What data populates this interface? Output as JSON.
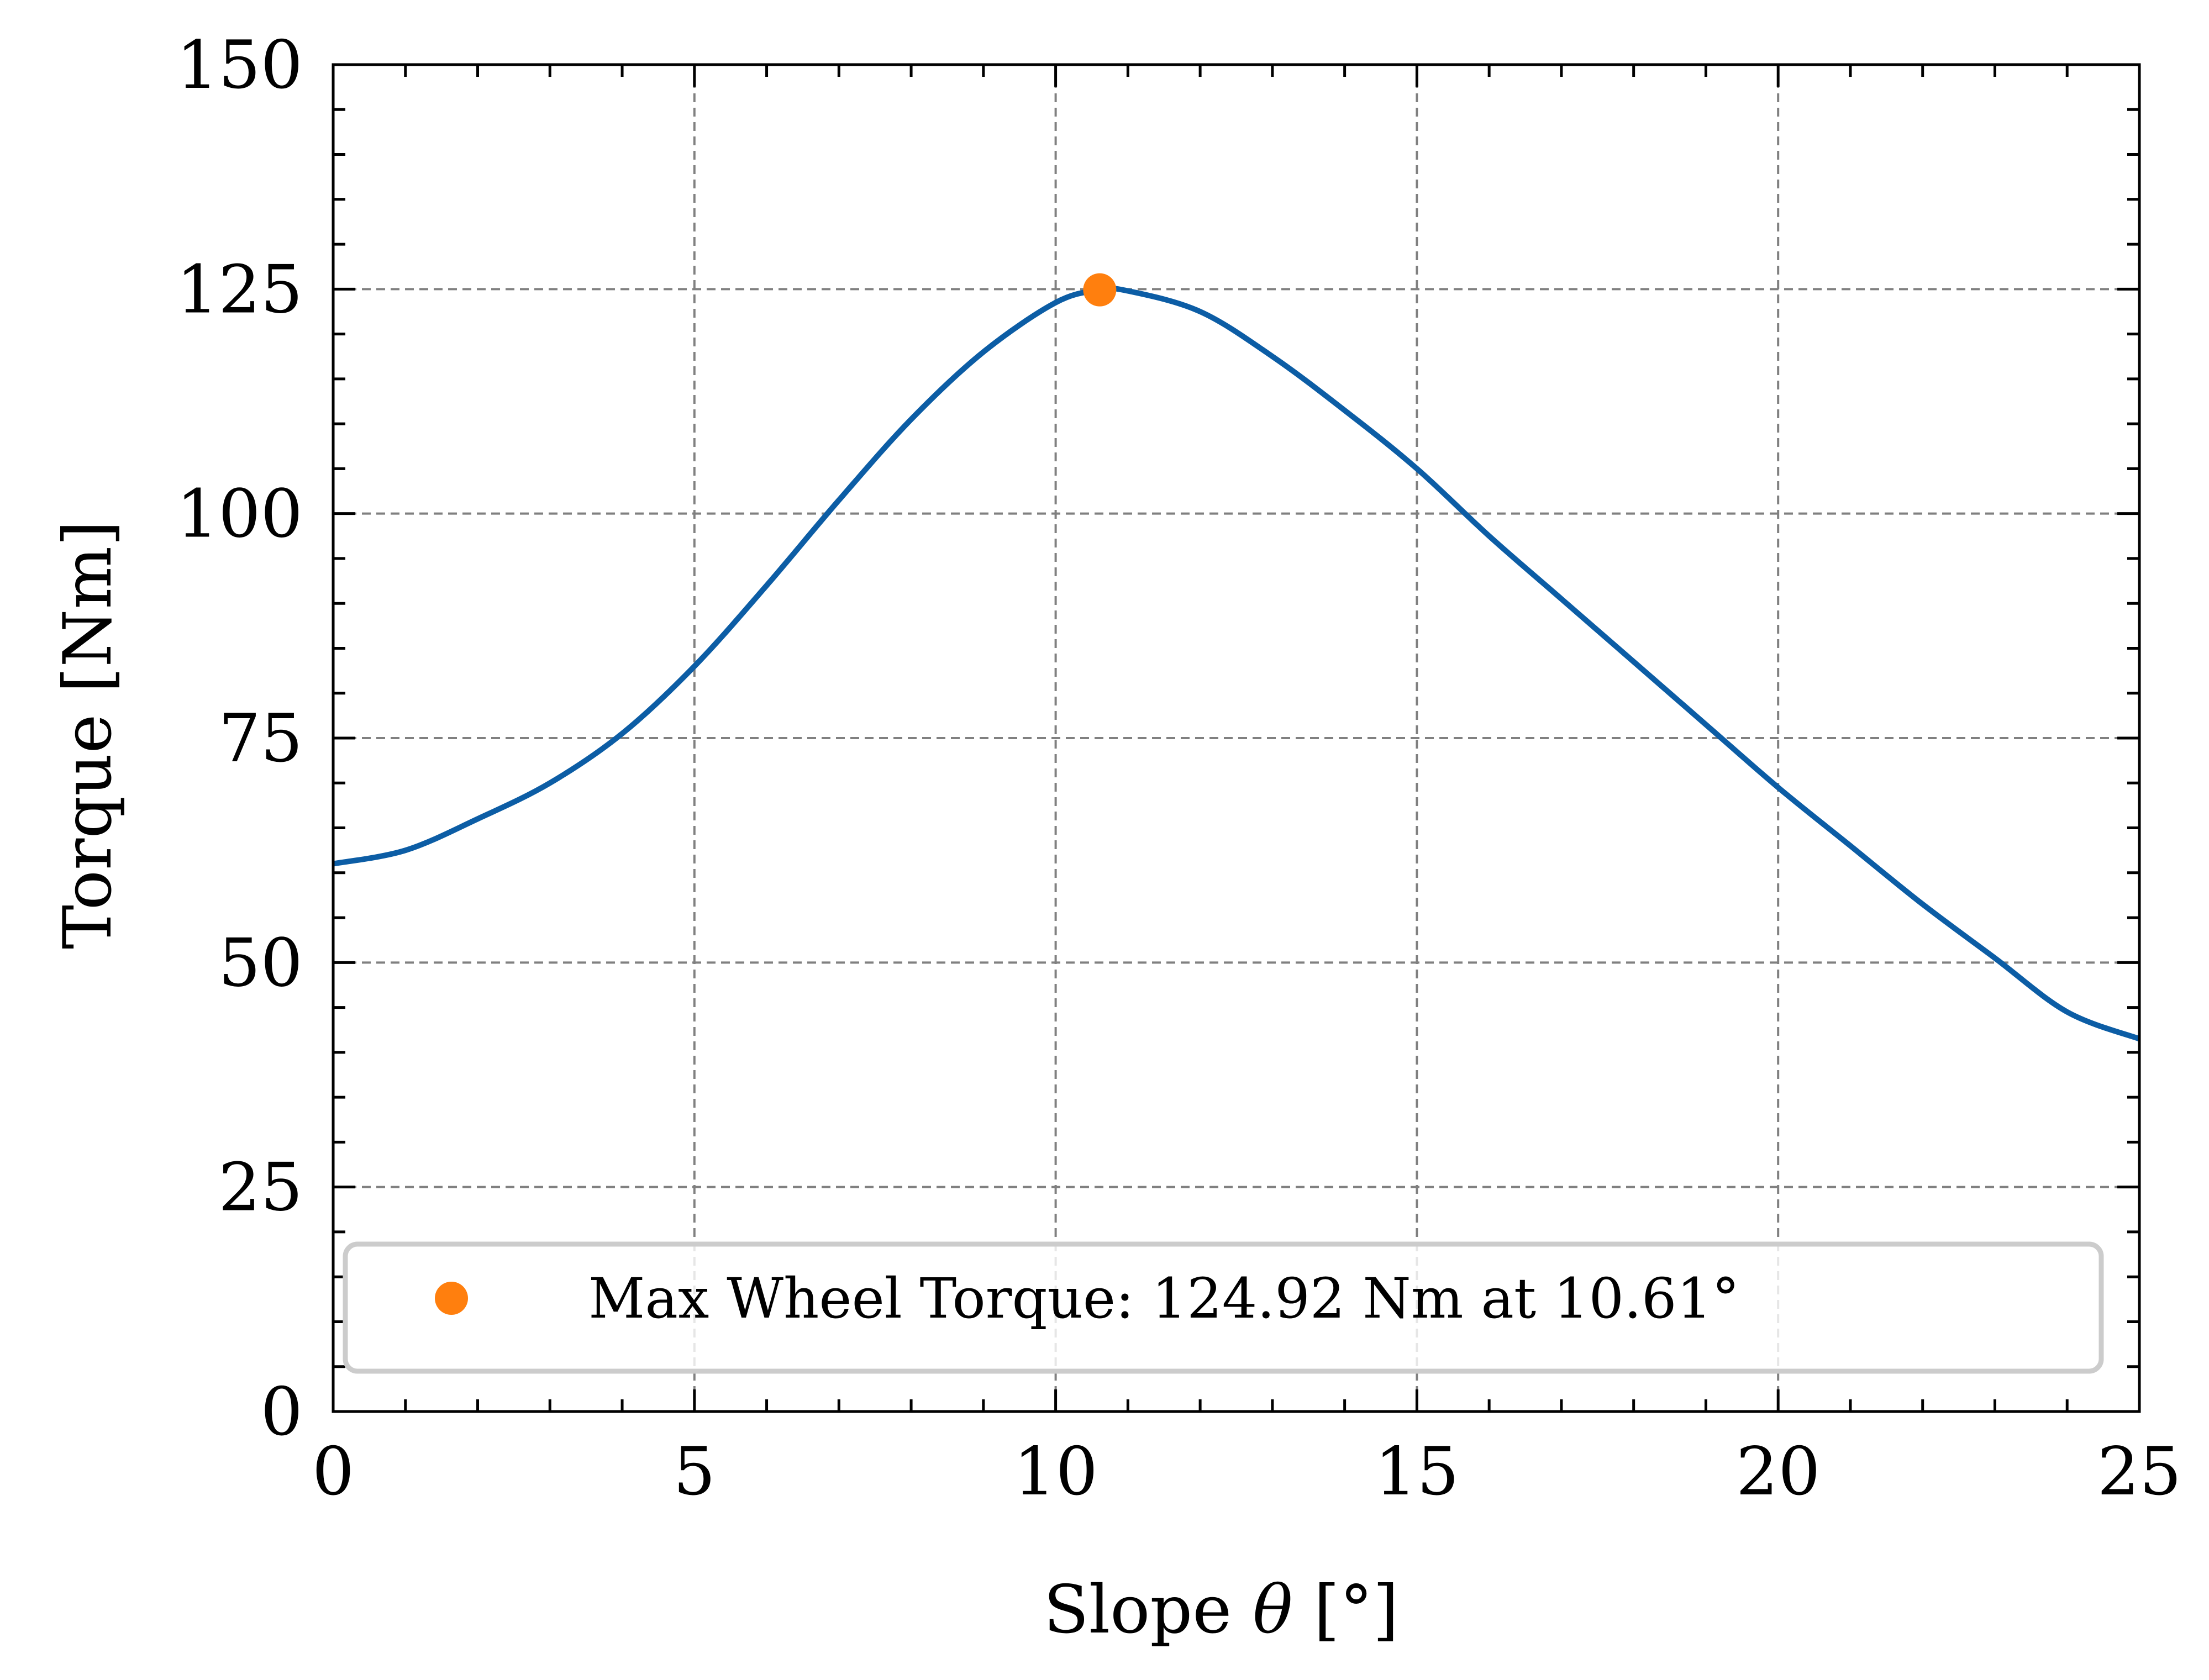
{
  "chart_data": {
    "type": "line",
    "title": "",
    "xlabel_parts": [
      "Slope ",
      "θ",
      " [°]"
    ],
    "ylabel": "Torque [Nm]",
    "xlim": [
      0,
      25
    ],
    "ylim": [
      0,
      150
    ],
    "x_ticks": [
      0,
      5,
      10,
      15,
      20,
      25
    ],
    "y_ticks": [
      0,
      25,
      50,
      75,
      100,
      125,
      150
    ],
    "x_tick_labels": [
      "0",
      "5",
      "10",
      "15",
      "20",
      "25"
    ],
    "y_tick_labels": [
      "0",
      "25",
      "50",
      "75",
      "100",
      "125",
      "150"
    ],
    "x_minor_step": 1,
    "y_minor_step": 5,
    "grid": true,
    "legend_position": "lower-left",
    "series": [
      {
        "color": "#0c5da5",
        "x": [
          0,
          1,
          2,
          3,
          4,
          5,
          6,
          7,
          8,
          9,
          10,
          10.61,
          11,
          12,
          13,
          14,
          15,
          16,
          17,
          18,
          19,
          20,
          21,
          22,
          23,
          24,
          25
        ],
        "y": [
          61,
          62.5,
          66,
          70,
          75.5,
          83,
          92,
          101.5,
          110.5,
          118,
          123.5,
          124.9,
          124.8,
          122.5,
          117.5,
          111.5,
          105,
          97.5,
          90.5,
          83.5,
          76.5,
          69.5,
          63,
          56.5,
          50.5,
          44.5,
          41.5
        ]
      }
    ],
    "max_point": {
      "name": "Max Wheel Torque: 124.92 Nm at 10.61°",
      "x": 10.61,
      "y": 124.92,
      "color": "#ff7f0e"
    }
  }
}
